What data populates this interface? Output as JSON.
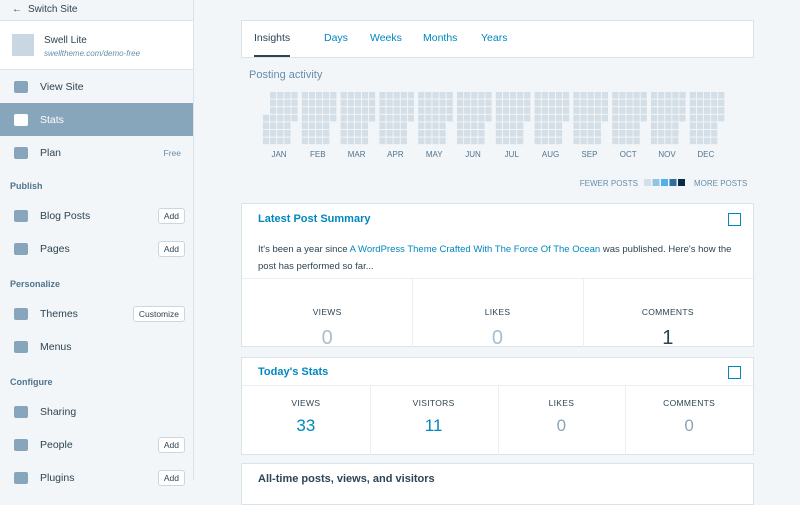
{
  "sidebar": {
    "switch_site": "Switch Site",
    "site_name": "Swell Lite",
    "site_url": "swelltheme.com/demo-free",
    "items": [
      {
        "label": "View Site"
      },
      {
        "label": "Stats"
      },
      {
        "label": "Plan",
        "badge": "Free"
      }
    ],
    "sections": [
      {
        "title": "Publish",
        "items": [
          {
            "label": "Blog Posts",
            "button": "Add"
          },
          {
            "label": "Pages",
            "button": "Add"
          }
        ]
      },
      {
        "title": "Personalize",
        "items": [
          {
            "label": "Themes",
            "button": "Customize"
          },
          {
            "label": "Menus"
          }
        ]
      },
      {
        "title": "Configure",
        "items": [
          {
            "label": "Sharing"
          },
          {
            "label": "People",
            "button": "Add"
          },
          {
            "label": "Plugins",
            "button": "Add"
          }
        ]
      }
    ]
  },
  "tabs": [
    "Insights",
    "Days",
    "Weeks",
    "Months",
    "Years"
  ],
  "posting_activity": {
    "title": "Posting activity",
    "months": [
      "JAN",
      "FEB",
      "MAR",
      "APR",
      "MAY",
      "JUN",
      "JUL",
      "AUG",
      "SEP",
      "OCT",
      "NOV",
      "DEC"
    ],
    "legend_fewer": "FEWER POSTS",
    "legend_more": "MORE POSTS"
  },
  "latest_post": {
    "title": "Latest Post Summary",
    "text_before": "It's been a year since ",
    "link": "A WordPress Theme Crafted With The Force Of The Ocean",
    "text_after": " was published. Here's how the post has performed so far...",
    "stats": [
      {
        "label": "VIEWS",
        "value": 0
      },
      {
        "label": "LIKES",
        "value": 0
      },
      {
        "label": "COMMENTS",
        "value": 1
      }
    ]
  },
  "todays_stats": {
    "title": "Today's Stats",
    "stats": [
      {
        "label": "VIEWS",
        "value": 33
      },
      {
        "label": "VISITORS",
        "value": 11
      },
      {
        "label": "LIKES",
        "value": 0
      },
      {
        "label": "COMMENTS",
        "value": 0
      }
    ]
  },
  "all_time": {
    "title": "All-time posts, views, and visitors"
  }
}
